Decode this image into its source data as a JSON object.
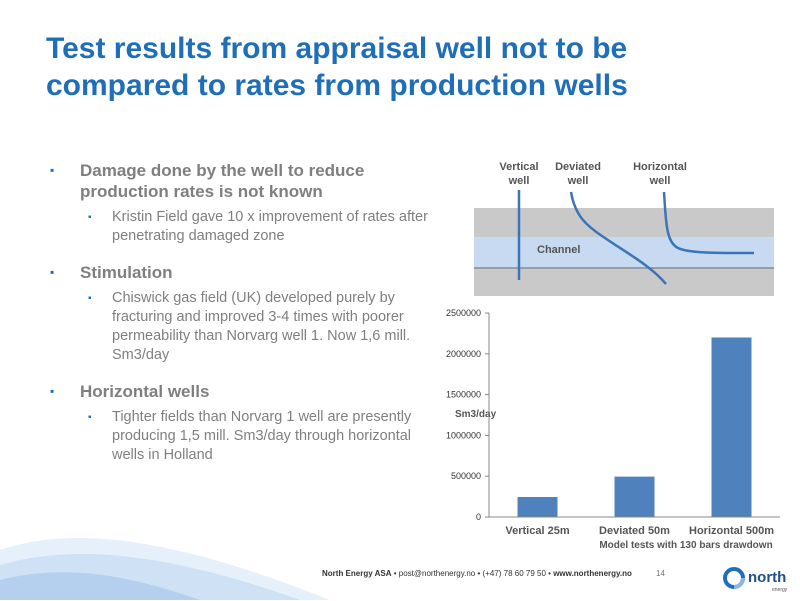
{
  "title": "Test results from appraisal well not to be compared to rates from production wells",
  "bullets": [
    {
      "text": "Damage done by the well to reduce production rates is not known",
      "sub": [
        "Kristin Field gave 10 x improvement of rates after penetrating damaged zone"
      ]
    },
    {
      "text": "Stimulation",
      "sub": [
        "Chiswick gas field (UK) developed purely by fracturing and improved 3-4 times with poorer permeability than Norvarg well 1. Now 1,6 mill. Sm3/day"
      ]
    },
    {
      "text": "Horizontal wells",
      "sub": [
        "Tighter fields than Norvarg 1 well are presently producing 1,5 mill. Sm3/day through horizontal wells in Holland"
      ]
    }
  ],
  "diagram": {
    "vertical_line1": "Vertical",
    "vertical_line2": "well",
    "deviated_line1": "Deviated",
    "deviated_line2": "well",
    "horizontal_line1": "Horizontal",
    "horizontal_line2": "well",
    "channel_label": "Channel",
    "colors": {
      "rock": "#c9c9c9",
      "channel": "#c7daf1",
      "well": "#3a75b8"
    }
  },
  "chart_data": {
    "type": "bar",
    "categories": [
      "Vertical 25m",
      "Deviated 50m",
      "Horizontal 500m"
    ],
    "values": [
      245000,
      495000,
      2200000
    ],
    "ylabel": "Sm3/day",
    "xlabel": "Model tests with 130 bars drawdown",
    "ylim": [
      0,
      2500000
    ],
    "yticks": [
      "0",
      "500000",
      "1000000",
      "1500000",
      "2000000",
      "2500000"
    ],
    "grid": false,
    "bar_color": "#4f81bd"
  },
  "footer": {
    "company": "North Energy ASA",
    "email": "post@northenergy.no",
    "phone": "(+47) 78 60 79 50",
    "web": "www.northenergy.no",
    "separator": "•",
    "page_number": "14"
  },
  "logo": {
    "text": "north",
    "subtext": "energy"
  }
}
